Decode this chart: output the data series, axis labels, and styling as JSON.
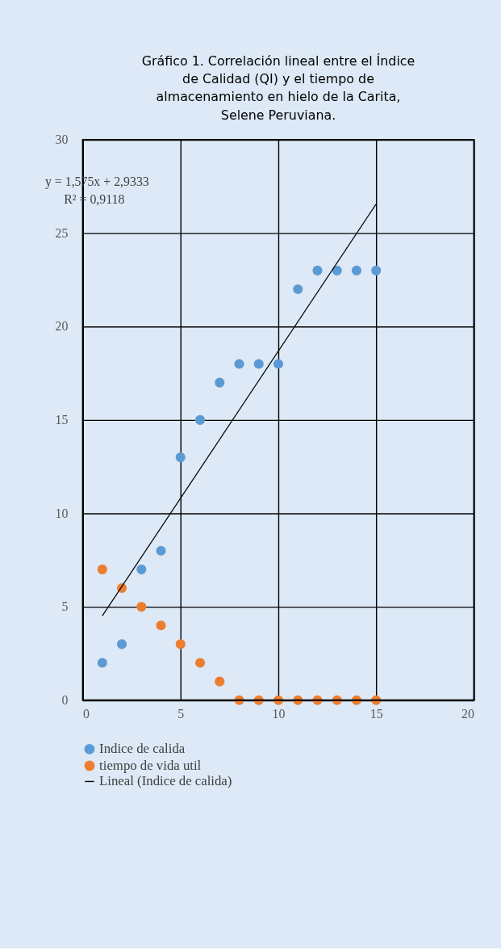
{
  "chart_data": {
    "type": "scatter",
    "title": [
      "Gráfico 1. Correlación lineal entre el Índice",
      "de Calidad (QI) y el tiempo de",
      "almacenamiento en hielo de la Carita,",
      "Selene Peruviana."
    ],
    "x": [
      1,
      2,
      3,
      4,
      5,
      6,
      7,
      8,
      9,
      10,
      11,
      12,
      13,
      14,
      15
    ],
    "series": [
      {
        "name": "Indice de calida",
        "color": "#5b9bd5",
        "values": [
          2,
          3,
          7,
          8,
          13,
          15,
          17,
          18,
          18,
          18,
          22,
          23,
          23,
          23,
          23
        ]
      },
      {
        "name": "tiempo de vida util",
        "color": "#ed7d31",
        "values": [
          7,
          6,
          5,
          4,
          3,
          2,
          1,
          0,
          0,
          0,
          0,
          0,
          0,
          0,
          0
        ]
      },
      {
        "name": "Lineal (Indice de calida)",
        "type": "line",
        "marker": "none",
        "color": "#000000",
        "x": [
          1,
          15
        ],
        "values": [
          4.51,
          26.56
        ]
      }
    ],
    "annotations": [
      "y = 1,575x + 2,9333",
      "R² = 0,9118"
    ],
    "xlim": [
      0,
      20
    ],
    "xticks": [
      0,
      5,
      10,
      15,
      20
    ],
    "ylim": [
      0,
      30
    ],
    "yticks": [
      0,
      5,
      10,
      15,
      20,
      25,
      30
    ],
    "grid": true,
    "legend": "bottom",
    "marker": "circle"
  }
}
